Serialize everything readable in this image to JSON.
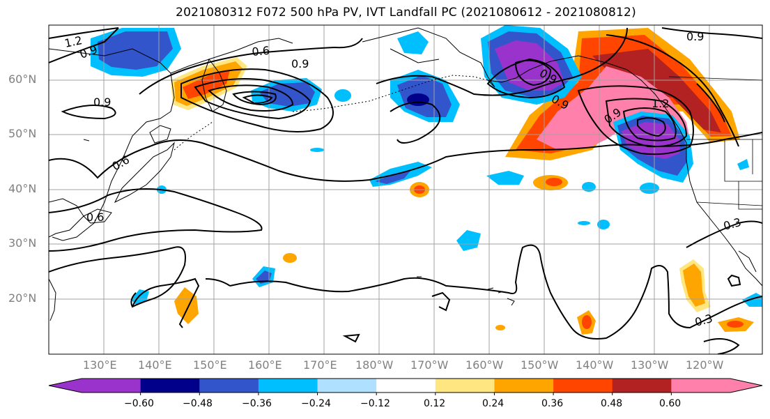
{
  "title": "2021080312 F072 500 hPa PV, IVT Landfall PC (2021080612 - 2021080812)",
  "map": {
    "lat_labels": [
      "60°N",
      "50°N",
      "40°N",
      "30°N",
      "20°N"
    ],
    "lon_labels": [
      "130°E",
      "140°E",
      "150°E",
      "160°E",
      "170°E",
      "180°W",
      "170°W",
      "160°W",
      "150°W",
      "140°W",
      "130°W",
      "120°W"
    ],
    "contour_labels": [
      "1.2",
      "0.9",
      "0.6",
      "0.9",
      "0.9",
      "0.6",
      "0.6",
      "0.9",
      "0.9",
      "1.2",
      "0.9",
      "0.3",
      "0.3",
      "0.9"
    ]
  },
  "colorbar": {
    "ticks": [
      "−0.60",
      "−0.48",
      "−0.36",
      "−0.24",
      "−0.12",
      "0.12",
      "0.24",
      "0.36",
      "0.48",
      "0.60"
    ],
    "colors": [
      "#9933cc",
      "#00008b",
      "#3355cc",
      "#00bfff",
      "#b0e0ff",
      "#ffffff",
      "#ffe680",
      "#ffa500",
      "#ff4500",
      "#b22222",
      "#ff80aa"
    ]
  }
}
